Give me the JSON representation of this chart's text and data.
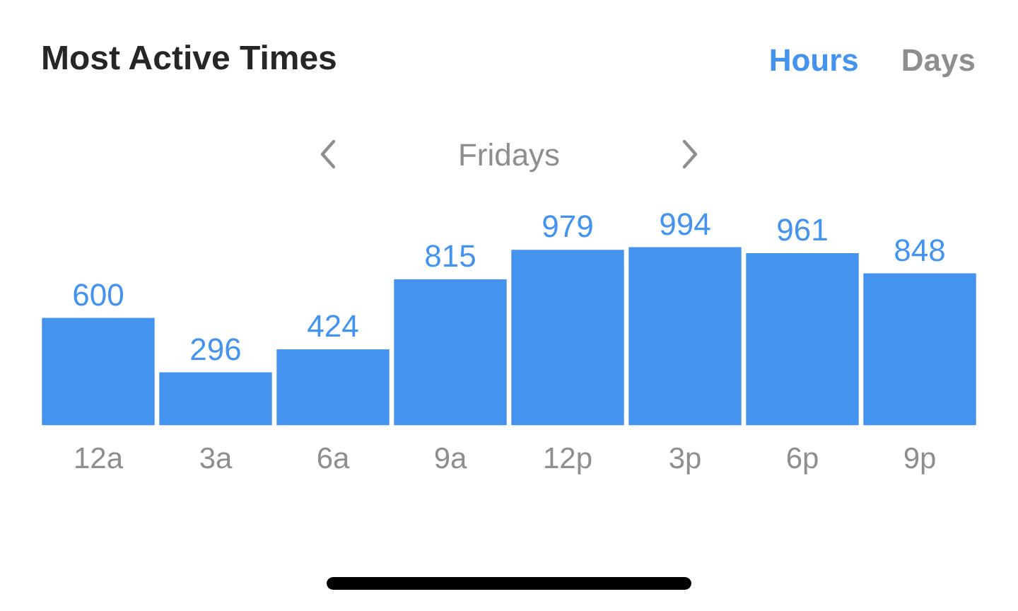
{
  "chart_data": {
    "type": "bar",
    "title": "Most Active Times",
    "subtitle": "Fridays",
    "annotations": [
      "Hours",
      "Days"
    ],
    "categories": [
      "12a",
      "3a",
      "6a",
      "9a",
      "12p",
      "3p",
      "6p",
      "9p"
    ],
    "values": [
      600,
      296,
      424,
      815,
      979,
      994,
      961,
      848
    ],
    "color": "#4393ef",
    "tick_labels": "x",
    "data_labels": true,
    "grid": false,
    "legend": false
  }
}
